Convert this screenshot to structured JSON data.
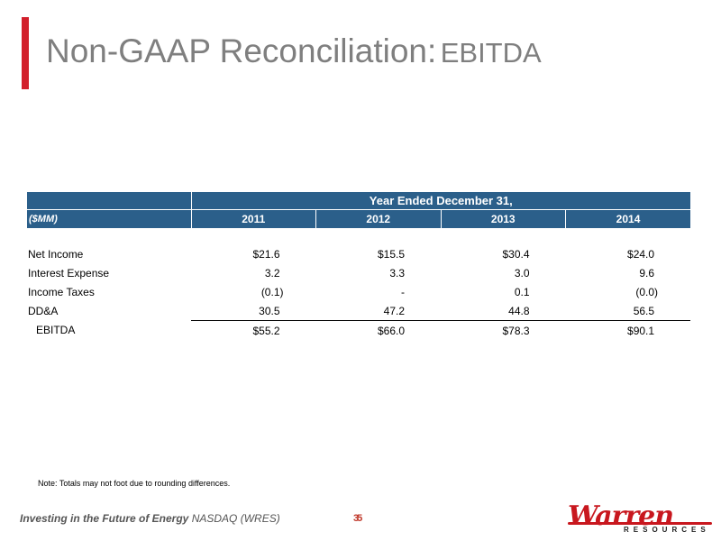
{
  "title": {
    "main": "Non-GAAP Reconciliation:",
    "sub": "EBITDA"
  },
  "table": {
    "period_header": "Year Ended December 31,",
    "unit_label": "($MM)",
    "years": [
      "2011",
      "2012",
      "2013",
      "2014"
    ],
    "rows": [
      {
        "label": "Net Income",
        "values": [
          "$21.6",
          "$15.5",
          "$30.4",
          "$24.0"
        ]
      },
      {
        "label": "Interest Expense",
        "values": [
          "3.2",
          "3.3",
          "3.0",
          "9.6"
        ]
      },
      {
        "label": "Income Taxes",
        "values": [
          "(0.1)",
          "-",
          "0.1",
          "(0.0)"
        ]
      },
      {
        "label": "DD&A",
        "values": [
          "30.5",
          "47.2",
          "44.8",
          "56.5"
        ]
      },
      {
        "label": "EBITDA",
        "values": [
          "$55.2",
          "$66.0",
          "$78.3",
          "$90.1"
        ]
      }
    ]
  },
  "note": "Note: Totals may not foot due to rounding differences.",
  "footer": {
    "tagline": "Investing in the Future of Energy",
    "ticker": "NASDAQ (WRES)",
    "page_number": "35"
  },
  "logo": {
    "name": "Warren",
    "sub": "RESOURCES"
  },
  "colors": {
    "accent_red": "#d21f2b",
    "header_blue": "#2b5f8a",
    "title_gray": "#7f7f7f"
  }
}
